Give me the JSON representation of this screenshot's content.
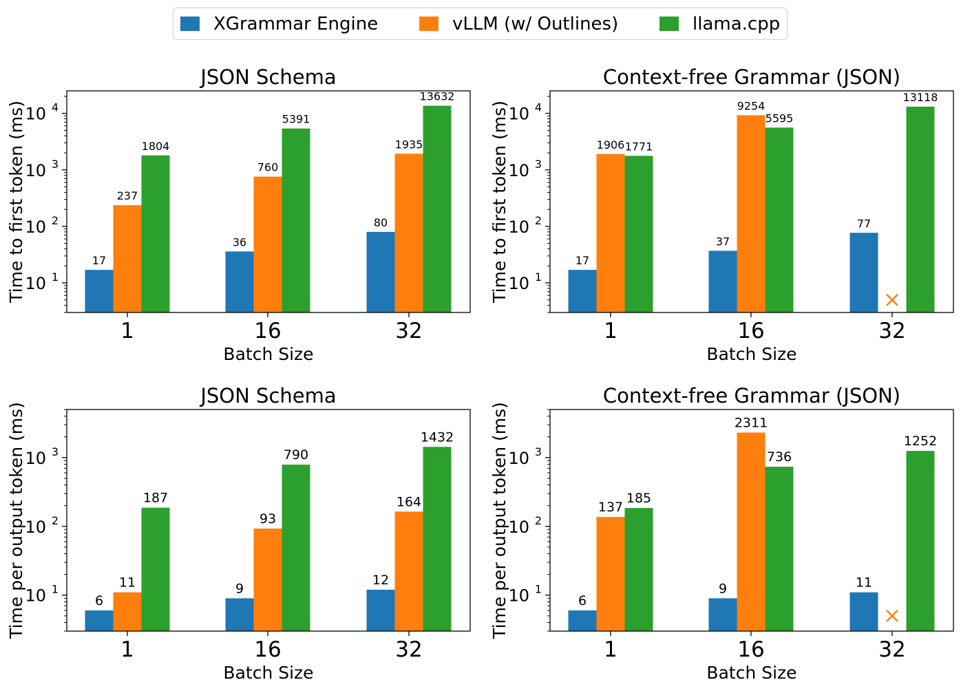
{
  "legend": [
    {
      "label": "XGrammar Engine",
      "color": "#1f77b4"
    },
    {
      "label": "vLLM (w/ Outlines)",
      "color": "#ff7f0e"
    },
    {
      "label": "llama.cpp",
      "color": "#2ca02c"
    }
  ],
  "failure_marker": "×",
  "chart_data": [
    {
      "type": "bar",
      "scale": "log",
      "title": "JSON Schema",
      "xlabel": "Batch Size",
      "ylabel": "Time to first token (ms)",
      "categories": [
        "1",
        "16",
        "32"
      ],
      "ylim": [
        3,
        25000
      ],
      "yticks": [
        {
          "value": 10,
          "base": "10",
          "exp": "1"
        },
        {
          "value": 100,
          "base": "10",
          "exp": "2"
        },
        {
          "value": 1000,
          "base": "10",
          "exp": "3"
        },
        {
          "value": 10000,
          "base": "10",
          "exp": "4"
        }
      ],
      "series": [
        {
          "name": "XGrammar Engine",
          "values": [
            17,
            36,
            80
          ],
          "labels": [
            "17",
            "36",
            "80"
          ]
        },
        {
          "name": "vLLM (w/ Outlines)",
          "values": [
            237,
            760,
            1935
          ],
          "labels": [
            "237",
            "760",
            "1935"
          ]
        },
        {
          "name": "llama.cpp",
          "values": [
            1804,
            5391,
            13632
          ],
          "labels": [
            "1804",
            "5391",
            "13632"
          ]
        }
      ]
    },
    {
      "type": "bar",
      "scale": "log",
      "title": "Context-free Grammar (JSON)",
      "xlabel": "Batch Size",
      "ylabel": "Time to first token (ms)",
      "categories": [
        "1",
        "16",
        "32"
      ],
      "ylim": [
        3,
        25000
      ],
      "yticks": [
        {
          "value": 10,
          "base": "10",
          "exp": "1"
        },
        {
          "value": 100,
          "base": "10",
          "exp": "2"
        },
        {
          "value": 1000,
          "base": "10",
          "exp": "3"
        },
        {
          "value": 10000,
          "base": "10",
          "exp": "4"
        }
      ],
      "series": [
        {
          "name": "XGrammar Engine",
          "values": [
            17,
            37,
            77
          ],
          "labels": [
            "17",
            "37",
            "77"
          ]
        },
        {
          "name": "vLLM (w/ Outlines)",
          "values": [
            1906,
            9254,
            null
          ],
          "labels": [
            "1906",
            "9254",
            null
          ]
        },
        {
          "name": "llama.cpp",
          "values": [
            1771,
            5595,
            13118
          ],
          "labels": [
            "1771",
            "5595",
            "13118"
          ]
        }
      ],
      "failures": [
        {
          "series": 1,
          "category": 2,
          "marker_value": 5
        }
      ]
    },
    {
      "type": "bar",
      "scale": "log",
      "title": "JSON Schema",
      "xlabel": "Batch Size",
      "ylabel": "Time per output token (ms)",
      "categories": [
        "1",
        "16",
        "32"
      ],
      "ylim": [
        3,
        5000
      ],
      "yticks": [
        {
          "value": 10,
          "base": "10",
          "exp": "1"
        },
        {
          "value": 100,
          "base": "10",
          "exp": "2"
        },
        {
          "value": 1000,
          "base": "10",
          "exp": "3"
        }
      ],
      "series": [
        {
          "name": "XGrammar Engine",
          "values": [
            6,
            9,
            12
          ],
          "labels": [
            "6",
            "9",
            "12"
          ]
        },
        {
          "name": "vLLM (w/ Outlines)",
          "values": [
            11,
            93,
            164
          ],
          "labels": [
            "11",
            "93",
            "164"
          ]
        },
        {
          "name": "llama.cpp",
          "values": [
            187,
            790,
            1432
          ],
          "labels": [
            "187",
            "790",
            "1432"
          ]
        }
      ]
    },
    {
      "type": "bar",
      "scale": "log",
      "title": "Context-free Grammar (JSON)",
      "xlabel": "Batch Size",
      "ylabel": "Time per output token (ms)",
      "categories": [
        "1",
        "16",
        "32"
      ],
      "ylim": [
        3,
        5000
      ],
      "yticks": [
        {
          "value": 10,
          "base": "10",
          "exp": "1"
        },
        {
          "value": 100,
          "base": "10",
          "exp": "2"
        },
        {
          "value": 1000,
          "base": "10",
          "exp": "3"
        }
      ],
      "series": [
        {
          "name": "XGrammar Engine",
          "values": [
            6,
            9,
            11
          ],
          "labels": [
            "6",
            "9",
            "11"
          ]
        },
        {
          "name": "vLLM (w/ Outlines)",
          "values": [
            137,
            2311,
            null
          ],
          "labels": [
            "137",
            "2311",
            null
          ]
        },
        {
          "name": "llama.cpp",
          "values": [
            185,
            736,
            1252
          ],
          "labels": [
            "185",
            "736",
            "1252"
          ]
        }
      ],
      "failures": [
        {
          "series": 1,
          "category": 2,
          "marker_value": 5
        }
      ]
    }
  ]
}
